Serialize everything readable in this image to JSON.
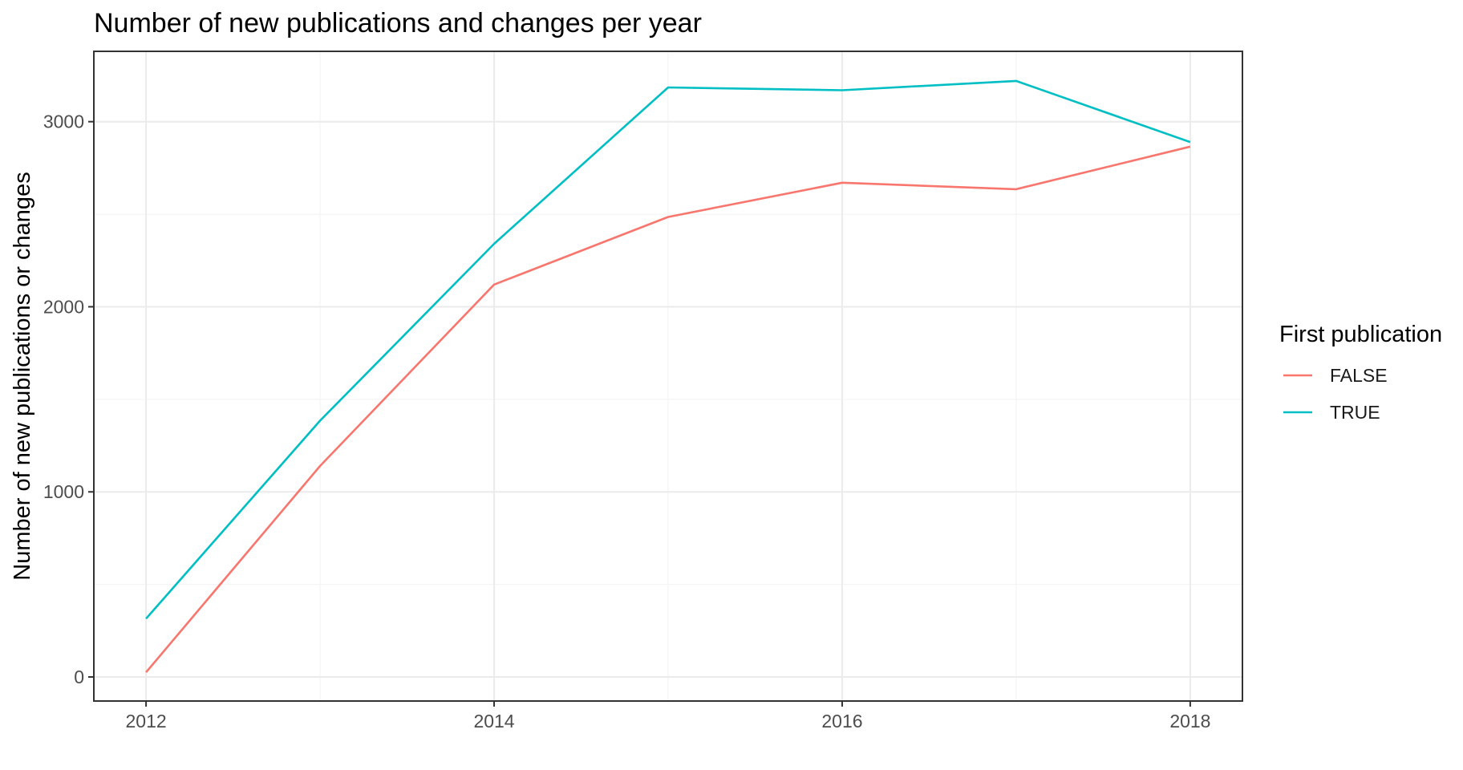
{
  "chart_data": {
    "type": "line",
    "title": "Number of new publications and changes per year",
    "xlabel": "",
    "ylabel": "Number of new publications or changes",
    "x": [
      2012,
      2013,
      2014,
      2015,
      2016,
      2017,
      2018
    ],
    "xticks": [
      2012,
      2014,
      2016,
      2018
    ],
    "xlim": [
      2011.7,
      2018.3
    ],
    "yticks": [
      0,
      1000,
      2000,
      3000
    ],
    "ylim": [
      -130,
      3380
    ],
    "grid": true,
    "legend": {
      "title": "First publication",
      "placement": "right"
    },
    "series": [
      {
        "name": "FALSE",
        "color": "#F8766D",
        "values": [
          25,
          1140,
          2120,
          2485,
          2670,
          2635,
          2865
        ]
      },
      {
        "name": "TRUE",
        "color": "#00BFC4",
        "values": [
          315,
          1385,
          2340,
          3185,
          3170,
          3220,
          2890
        ]
      }
    ]
  }
}
